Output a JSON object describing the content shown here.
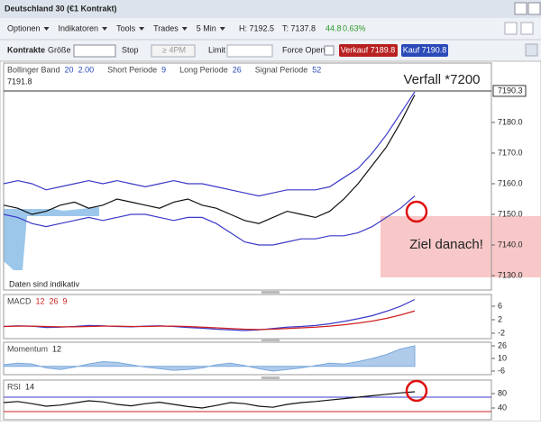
{
  "window": {
    "title": "Deutschland 30 (€1 Kontrakt)"
  },
  "menu": [
    "Optionen",
    "Indikatoren",
    "Tools",
    "Trades",
    "5 Min"
  ],
  "quote": {
    "high": "H: 7192.5",
    "low": "T: 7137.8",
    "change": "44.8",
    "change_pct": "0.63%"
  },
  "order_bar": {
    "contracts": "Kontrakte",
    "size": "Größe",
    "stop": "Stop",
    "stop_value": "≥ 4PM",
    "limit": "Limit",
    "force_open": "Force Open",
    "sell": "Verkauf 7189.8",
    "buy": "Kauf 7190.8"
  },
  "chart_data": [
    {
      "type": "line",
      "legend_items": [
        {
          "label": "Bollinger Band",
          "params": [
            "20",
            "2.00"
          ]
        },
        {
          "label": "Short Periode",
          "params": [
            "9"
          ]
        },
        {
          "label": "Long Periode",
          "params": [
            "26"
          ]
        },
        {
          "label": "Signal Periode",
          "params": [
            "52"
          ]
        }
      ],
      "corner_label": "7191.8",
      "annotations": [
        "Verfall *7200",
        "Ziel danach!",
        "Daten sind indikativ"
      ],
      "price_marker": {
        "value": 7190.3,
        "label": "7190.3"
      },
      "ylim": [
        7125.3,
        7199.4
      ],
      "yticks": [
        {
          "value": 7130,
          "label": "7130.0"
        },
        {
          "value": 7140,
          "label": "7140.0"
        },
        {
          "value": 7150,
          "label": "7150.0"
        },
        {
          "value": 7160,
          "label": "7160.0"
        },
        {
          "value": 7170,
          "label": "7170.0"
        },
        {
          "value": 7180,
          "label": "7180.0"
        }
      ],
      "series": [
        {
          "color": "#3a3ac8",
          "values": [
            7160,
            7161,
            7160,
            7158,
            7159,
            7160,
            7161,
            7160,
            7161,
            7160,
            7159,
            7160,
            7161,
            7160,
            7160,
            7159,
            7158,
            7157,
            7156,
            7157,
            7158,
            7158,
            7158,
            7159,
            7162,
            7165,
            7170,
            7176,
            7183,
            7190
          ]
        },
        {
          "color": "#3a3ac8",
          "values": [
            7150,
            7149,
            7147,
            7146,
            7147,
            7148,
            7149,
            7148,
            7149,
            7150,
            7150,
            7149,
            7148,
            7149,
            7149,
            7147,
            7144,
            7141,
            7140,
            7140,
            7141,
            7142,
            7142,
            7143,
            7143,
            7144,
            7146,
            7149,
            7152,
            7156
          ]
        },
        {
          "color": "#111111",
          "values": [
            7153,
            7152,
            7150,
            7151,
            7153,
            7154,
            7152,
            7153,
            7155,
            7154,
            7153,
            7152,
            7154,
            7155,
            7153,
            7152,
            7150,
            7148,
            7147,
            7149,
            7151,
            7150,
            7149,
            7151,
            7155,
            7160,
            7166,
            7172,
            7180,
            7189
          ]
        }
      ]
    },
    {
      "type": "line",
      "title": "MACD",
      "params": [
        "12",
        "26",
        "9"
      ],
      "ylim": [
        -3.6,
        9.47
      ],
      "yticks": [
        -2,
        2,
        6
      ],
      "series": [
        {
          "color": "#3a3ac8",
          "values": [
            0,
            0.2,
            0.1,
            -0.3,
            -0.2,
            0,
            0.3,
            0.2,
            0,
            -0.1,
            0.1,
            0.2,
            0,
            -0.3,
            -0.5,
            -0.8,
            -1,
            -1.2,
            -1,
            -0.6,
            -0.2,
            0,
            0.3,
            0.8,
            1.5,
            2.3,
            3.2,
            4.5,
            6,
            8
          ]
        },
        {
          "color": "#d02020",
          "values": [
            0,
            0.1,
            0.1,
            0,
            -0.1,
            -0.1,
            0,
            0.1,
            0.1,
            0,
            0,
            0.1,
            0.1,
            0,
            -0.2,
            -0.4,
            -0.6,
            -0.8,
            -0.9,
            -0.8,
            -0.6,
            -0.4,
            -0.2,
            0.1,
            0.5,
            1,
            1.6,
            2.4,
            3.4,
            4.6
          ]
        }
      ]
    },
    {
      "type": "area",
      "title": "Momentum",
      "params": [
        "12"
      ],
      "ylim": [
        -10.6,
        30.6
      ],
      "yticks": [
        -6,
        10,
        26
      ],
      "series": [
        {
          "color": "#7aa8dc",
          "values": [
            2,
            4,
            3,
            -2,
            -4,
            -1,
            3,
            6,
            5,
            2,
            -1,
            -3,
            -5,
            -4,
            -2,
            2,
            4,
            1,
            -3,
            -6,
            -4,
            -2,
            1,
            4,
            3,
            6,
            10,
            15,
            22,
            26
          ]
        }
      ]
    },
    {
      "type": "line",
      "title": "RSI",
      "params": [
        "14"
      ],
      "ylim": [
        7.5,
        117.5
      ],
      "yticks": [
        40,
        80
      ],
      "hlines": [
        {
          "value": 70,
          "color": "#3a3ac8"
        },
        {
          "value": 30,
          "color": "#d02020"
        }
      ],
      "series": [
        {
          "color": "#111111",
          "values": [
            55,
            58,
            52,
            45,
            48,
            54,
            60,
            57,
            50,
            46,
            52,
            56,
            50,
            44,
            40,
            47,
            55,
            52,
            45,
            42,
            50,
            55,
            58,
            62,
            66,
            70,
            74,
            78,
            82,
            85
          ]
        }
      ]
    }
  ]
}
